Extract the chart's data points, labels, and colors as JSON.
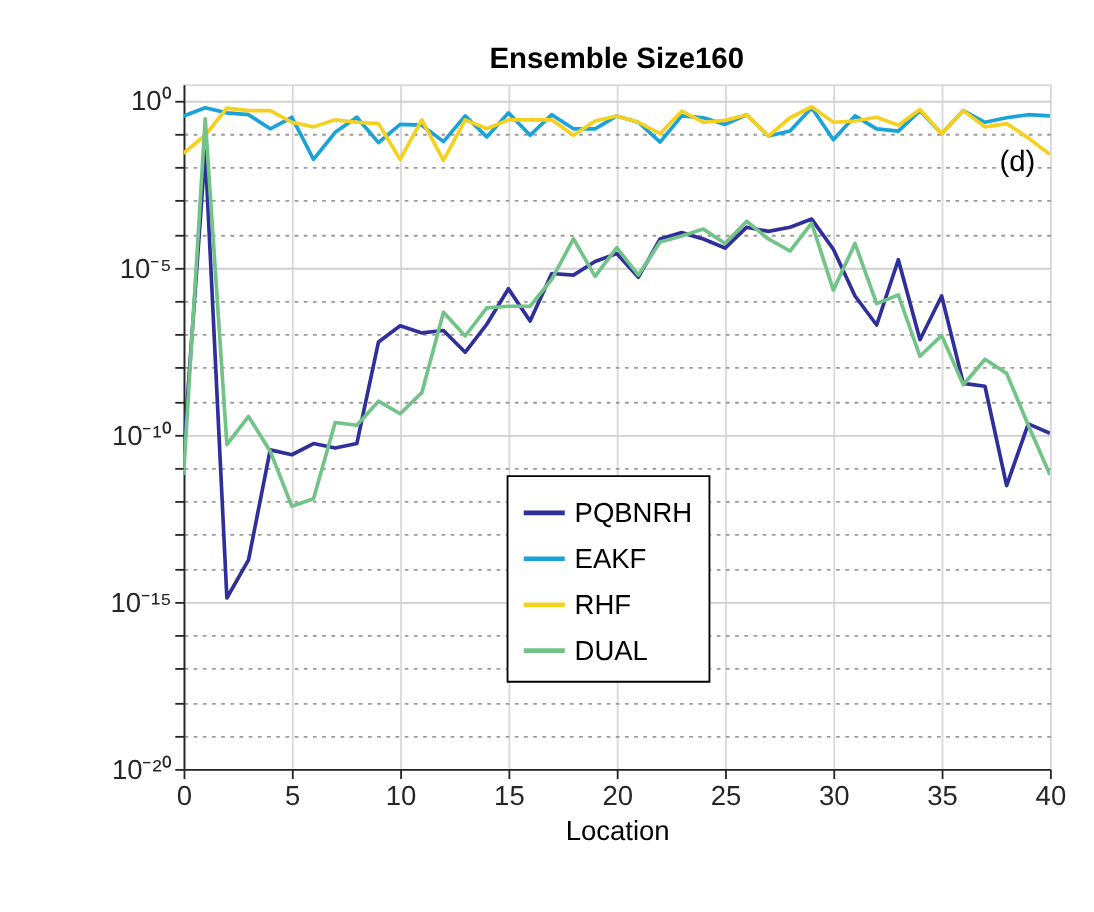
{
  "chart_data": {
    "type": "line",
    "title": "Ensemble Size160",
    "xlabel": "Location",
    "x": [
      0,
      1,
      2,
      3,
      4,
      5,
      6,
      7,
      8,
      9,
      10,
      11,
      12,
      13,
      14,
      15,
      16,
      17,
      18,
      19,
      20,
      21,
      22,
      23,
      24,
      25,
      26,
      27,
      28,
      29,
      30,
      31,
      32,
      33,
      34,
      35,
      36,
      37,
      38,
      39,
      40
    ],
    "series": [
      {
        "name": "PQBNRH",
        "color": "#2f2f9c",
        "values": [
          3e-11,
          0.03,
          1.3e-15,
          1.8e-14,
          3.5e-11,
          2.5e-11,
          5.4e-11,
          4e-11,
          5.4e-11,
          5.9e-08,
          1.8e-07,
          1.1e-07,
          1.3e-07,
          2.9e-08,
          2e-07,
          2.3e-06,
          2.5e-07,
          6.6e-06,
          5.9e-06,
          1.5e-05,
          2.6e-05,
          5.1e-06,
          7.1e-05,
          0.00011,
          7.1e-05,
          3.8e-05,
          0.00016,
          0.00012,
          0.00016,
          0.00028,
          3.5e-05,
          1.4e-06,
          1.9e-07,
          1.7e-05,
          6.9e-08,
          1.4e-06,
          3.4e-09,
          2.8e-09,
          3e-12,
          2.1e-10,
          1.1e-10
        ]
      },
      {
        "name": "EAKF",
        "color": "#1aa3d8",
        "values": [
          0.34,
          0.6,
          0.42,
          0.37,
          0.14,
          0.31,
          0.017,
          0.11,
          0.31,
          0.054,
          0.19,
          0.18,
          0.058,
          0.34,
          0.08,
          0.42,
          0.09,
          0.37,
          0.14,
          0.14,
          0.34,
          0.22,
          0.056,
          0.34,
          0.3,
          0.19,
          0.37,
          0.085,
          0.12,
          0.6,
          0.066,
          0.34,
          0.14,
          0.12,
          0.49,
          0.1,
          0.49,
          0.22,
          0.3,
          0.37,
          0.34
        ]
      },
      {
        "name": "RHF",
        "color": "#f5d01e",
        "values": [
          0.026,
          0.09,
          0.58,
          0.49,
          0.49,
          0.22,
          0.16,
          0.26,
          0.22,
          0.2,
          0.017,
          0.26,
          0.016,
          0.26,
          0.14,
          0.26,
          0.26,
          0.26,
          0.09,
          0.24,
          0.34,
          0.22,
          0.1,
          0.47,
          0.22,
          0.25,
          0.37,
          0.085,
          0.3,
          0.64,
          0.22,
          0.24,
          0.31,
          0.18,
          0.53,
          0.1,
          0.49,
          0.16,
          0.2,
          0.075,
          0.024
        ]
      },
      {
        "name": "DUAL",
        "color": "#72c387",
        "values": [
          6.3e-12,
          0.28,
          5e-11,
          3.5e-10,
          3.2e-11,
          7.2e-13,
          1.2e-12,
          2.3e-10,
          1.9e-10,
          1e-09,
          4.2e-10,
          1.8e-09,
          4.6e-07,
          8.9e-08,
          6.2e-07,
          6.9e-07,
          6.9e-07,
          4.4e-06,
          7.2e-05,
          5.4e-06,
          3.9e-05,
          5.9e-06,
          5.8e-05,
          8.7e-05,
          0.00014,
          5.2e-05,
          0.00024,
          7.1e-05,
          3.1e-05,
          0.00021,
          2.1e-06,
          5.2e-05,
          8.3e-07,
          1.5e-06,
          2.2e-08,
          9.3e-08,
          3.1e-09,
          1.8e-08,
          6.8e-09,
          1.9e-10,
          6.3e-12
        ]
      }
    ],
    "xlim": [
      0,
      40
    ],
    "xticks": [
      0,
      5,
      10,
      15,
      20,
      25,
      30,
      35,
      40
    ],
    "ylim": [
      1e-20,
      3
    ],
    "log": true,
    "yticks": [
      {
        "value": 1e-20,
        "label": "10⁻²⁰"
      },
      {
        "value": 1e-19,
        "label": null
      },
      {
        "value": 1e-18,
        "label": null
      },
      {
        "value": 1e-17,
        "label": null
      },
      {
        "value": 1e-16,
        "label": null
      },
      {
        "value": 1e-15,
        "label": "10⁻¹⁵"
      },
      {
        "value": 1e-14,
        "label": null
      },
      {
        "value": 1e-13,
        "label": null
      },
      {
        "value": 1e-12,
        "label": null
      },
      {
        "value": 1e-11,
        "label": null
      },
      {
        "value": 1e-10,
        "label": "10⁻¹⁰"
      },
      {
        "value": 1e-09,
        "label": null
      },
      {
        "value": 1e-08,
        "label": null
      },
      {
        "value": 1e-07,
        "label": null
      },
      {
        "value": 1e-06,
        "label": null
      },
      {
        "value": 1e-05,
        "label": "10⁻⁵"
      },
      {
        "value": 0.0001,
        "label": null
      },
      {
        "value": 0.001,
        "label": null
      },
      {
        "value": 0.01,
        "label": null
      },
      {
        "value": 0.1,
        "label": null
      },
      {
        "value": 1,
        "label": "10⁰"
      }
    ],
    "grid": true,
    "legend": "bottom",
    "marker": "none",
    "line_style": "solid",
    "annotations": [
      "(d)"
    ]
  }
}
